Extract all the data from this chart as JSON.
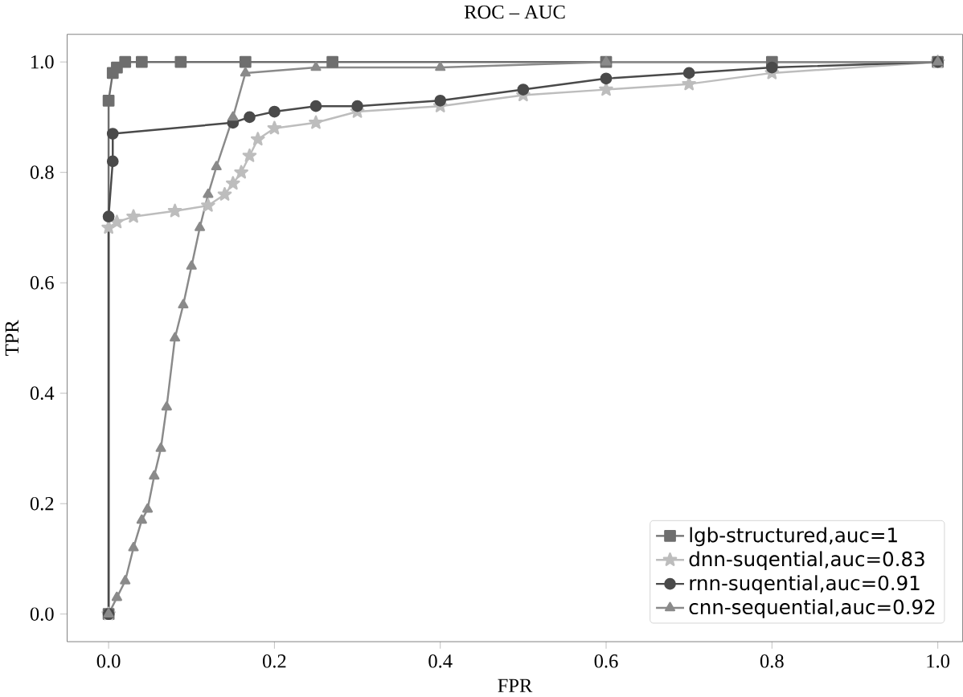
{
  "chart_data": {
    "type": "line",
    "title": "ROC – AUC",
    "xlabel": "FPR",
    "ylabel": "TPR",
    "xlim": [
      -0.05,
      1.03
    ],
    "ylim": [
      -0.05,
      1.05
    ],
    "xticks": [
      {
        "value": 0,
        "label": "0.0"
      },
      0.2,
      0.4,
      0.6,
      0.8,
      {
        "value": 1,
        "label": "1.0"
      }
    ],
    "yticks": [
      {
        "value": 0,
        "label": "0.0"
      },
      0.2,
      0.4,
      0.6,
      0.8,
      {
        "value": 1,
        "label": "1.0"
      }
    ],
    "legend": "bottom right",
    "series": [
      {
        "name": "lgb-structured,auc=1",
        "color": "#6e6e6e",
        "marker": "square",
        "x": [
          0,
          0,
          0.005,
          0.01,
          0.02,
          0.04,
          0.087,
          0.165,
          0.27,
          0.6,
          0.8,
          1
        ],
        "values": [
          0,
          0.93,
          0.98,
          0.99,
          1,
          1,
          1,
          1,
          1,
          1,
          1,
          1
        ]
      },
      {
        "name": "dnn-suqential,auc=0.83",
        "color": "#bdbdbd",
        "marker": "star",
        "x": [
          0,
          0,
          0.01,
          0.03,
          0.08,
          0.12,
          0.14,
          0.15,
          0.16,
          0.17,
          0.18,
          0.2,
          0.25,
          0.3,
          0.4,
          0.5,
          0.6,
          0.7,
          0.8,
          1
        ],
        "values": [
          0,
          0.7,
          0.71,
          0.72,
          0.73,
          0.74,
          0.76,
          0.78,
          0.8,
          0.83,
          0.86,
          0.88,
          0.89,
          0.91,
          0.92,
          0.94,
          0.95,
          0.96,
          0.98,
          1
        ]
      },
      {
        "name": "rnn-suqential,auc=0.91",
        "color": "#4a4a4a",
        "marker": "circle",
        "x": [
          0,
          0,
          0.005,
          0.005,
          0.15,
          0.17,
          0.2,
          0.25,
          0.3,
          0.4,
          0.5,
          0.6,
          0.7,
          0.8,
          1
        ],
        "values": [
          0,
          0.72,
          0.82,
          0.87,
          0.89,
          0.9,
          0.91,
          0.92,
          0.92,
          0.93,
          0.95,
          0.97,
          0.98,
          0.99,
          1
        ]
      },
      {
        "name": "cnn-sequential,auc=0.92",
        "color": "#8a8a8a",
        "marker": "triangle",
        "x": [
          0,
          0.01,
          0.02,
          0.03,
          0.04,
          0.047,
          0.055,
          0.063,
          0.07,
          0.08,
          0.09,
          0.1,
          0.11,
          0.12,
          0.13,
          0.15,
          0.165,
          0.25,
          0.4,
          0.6,
          1
        ],
        "values": [
          0,
          0.03,
          0.06,
          0.12,
          0.17,
          0.19,
          0.25,
          0.3,
          0.375,
          0.5,
          0.56,
          0.63,
          0.7,
          0.76,
          0.81,
          0.9,
          0.98,
          0.99,
          0.99,
          1,
          1
        ]
      }
    ]
  }
}
